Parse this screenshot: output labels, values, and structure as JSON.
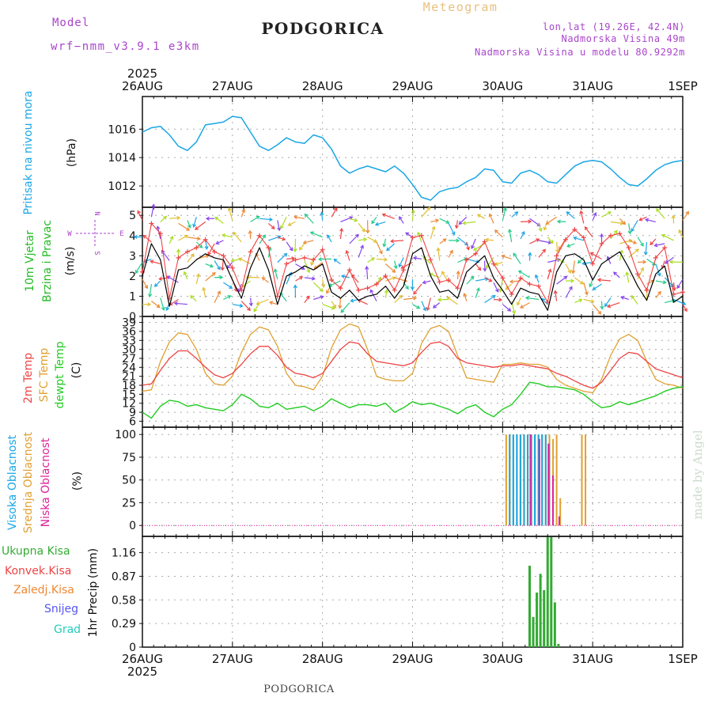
{
  "header": {
    "model_label": "Model",
    "model_name": "wrf−nmm_v3.9.1  e3km",
    "city_title": "PODGORICA",
    "meteogram": "Meteogram",
    "lonlat": "lon,lat (19.26E, 42.4N)",
    "elevation": "Nadmorska Visina 49m",
    "model_elevation": "Nadmorska Visina u modelu 80.9292m",
    "footer_city": "PODGORICA",
    "watermark": "made by Angel"
  },
  "x_axis": {
    "year": "2025",
    "days": [
      "26AUG",
      "27AUG",
      "28AUG",
      "29AUG",
      "30AUG",
      "31AUG",
      "1SEP"
    ]
  },
  "colors": {
    "pressure": "#1aa6e6",
    "wind_speed": "#000000",
    "gust": "#ee4444",
    "t2m": "#ee4444",
    "tsfc": "#e0a030",
    "dewpt": "#22cc22",
    "cloud_high": "#1aa6e6",
    "cloud_mid": "#e0a030",
    "cloud_low": "#dd2299",
    "precip_total": "#33aa33",
    "precip_conv": "#ee4444",
    "precip_frz": "#ee8833",
    "snow": "#5555ee",
    "graupel": "#22ccbb",
    "header_purple": "#aa44cc"
  },
  "chart_data": [
    {
      "id": "pressure",
      "type": "line",
      "ylabel": "Pritisak na nivou mora",
      "unit": "(hPa)",
      "ylim": [
        1010.5,
        1018.3
      ],
      "yticks": [
        1012,
        1014,
        1016
      ],
      "x_days": [
        0,
        0.1,
        0.2,
        0.3,
        0.4,
        0.5,
        0.6,
        0.7,
        0.8,
        0.9,
        1.0,
        1.1,
        1.2,
        1.3,
        1.4,
        1.5,
        1.6,
        1.7,
        1.8,
        1.9,
        2.0,
        2.1,
        2.2,
        2.3,
        2.4,
        2.5,
        2.6,
        2.7,
        2.8,
        2.9,
        3.0,
        3.1,
        3.2,
        3.3,
        3.4,
        3.5,
        3.6,
        3.7,
        3.8,
        3.9,
        4.0,
        4.1,
        4.2,
        4.3,
        4.4,
        4.5,
        4.6,
        4.7,
        4.8,
        4.9,
        5.0,
        5.1,
        5.2,
        5.3,
        5.4,
        5.5,
        5.6,
        5.7,
        5.8,
        5.9,
        6.0
      ],
      "values": [
        1015.8,
        1016.1,
        1016.2,
        1015.6,
        1014.8,
        1014.5,
        1015.1,
        1016.3,
        1016.4,
        1016.5,
        1016.9,
        1016.8,
        1015.8,
        1014.8,
        1014.5,
        1014.9,
        1015.4,
        1015.1,
        1015.0,
        1015.6,
        1015.4,
        1014.6,
        1013.4,
        1012.9,
        1013.2,
        1013.4,
        1013.2,
        1013.0,
        1013.4,
        1012.9,
        1012.1,
        1011.2,
        1011.0,
        1011.6,
        1011.8,
        1011.9,
        1012.3,
        1012.6,
        1013.2,
        1013.1,
        1012.3,
        1012.2,
        1012.9,
        1013.1,
        1012.8,
        1012.3,
        1012.2,
        1012.8,
        1013.4,
        1013.7,
        1013.8,
        1013.7,
        1013.2,
        1012.6,
        1012.1,
        1012.0,
        1012.5,
        1013.1,
        1013.5,
        1013.7,
        1013.8
      ]
    },
    {
      "id": "wind",
      "type": "line",
      "ylabel": "10m Vjetar",
      "ylabel2": "Brzina i Pravac",
      "unit": "(m/s)",
      "compass": {
        "n": "N",
        "s": "S",
        "w": "W",
        "e": "E"
      },
      "ylim": [
        0,
        5.4
      ],
      "yticks": [
        0,
        1,
        2,
        3,
        4,
        5
      ],
      "x_days": [
        0,
        0.1,
        0.2,
        0.3,
        0.4,
        0.5,
        0.6,
        0.7,
        0.8,
        0.9,
        1.0,
        1.1,
        1.2,
        1.3,
        1.4,
        1.5,
        1.6,
        1.7,
        1.8,
        1.9,
        2.0,
        2.1,
        2.2,
        2.3,
        2.4,
        2.5,
        2.6,
        2.7,
        2.8,
        2.9,
        3.0,
        3.1,
        3.2,
        3.3,
        3.4,
        3.5,
        3.6,
        3.7,
        3.8,
        3.9,
        4.0,
        4.1,
        4.2,
        4.3,
        4.4,
        4.5,
        4.6,
        4.7,
        4.8,
        4.9,
        5.0,
        5.1,
        5.2,
        5.3,
        5.4,
        5.5,
        5.6,
        5.7,
        5.8,
        5.9,
        6.0
      ],
      "speed": [
        2.0,
        3.6,
        2.8,
        0.5,
        2.3,
        2.4,
        2.8,
        3.1,
        2.9,
        2.8,
        1.8,
        0.9,
        2.4,
        3.4,
        2.3,
        0.6,
        2.0,
        2.2,
        2.5,
        2.3,
        2.6,
        1.2,
        0.9,
        1.3,
        0.8,
        1.0,
        1.1,
        1.5,
        0.9,
        1.5,
        3.1,
        3.4,
        2.0,
        1.2,
        1.3,
        0.9,
        2.2,
        2.6,
        3.0,
        1.9,
        1.3,
        0.6,
        1.4,
        1.2,
        1.1,
        0.3,
        2.2,
        3.0,
        3.1,
        2.8,
        1.8,
        2.6,
        2.9,
        3.2,
        2.4,
        1.5,
        0.8,
        2.1,
        2.5,
        0.7,
        1.0
      ],
      "gust": [
        2.2,
        4.6,
        4.1,
        0.9,
        2.9,
        3.2,
        3.4,
        3.8,
        3.2,
        3.0,
        2.4,
        1.3,
        3.2,
        4.0,
        3.4,
        1.0,
        2.6,
        2.8,
        2.9,
        2.8,
        3.3,
        1.8,
        1.4,
        2.3,
        1.3,
        1.4,
        1.6,
        2.0,
        1.3,
        2.3,
        3.9,
        4.0,
        2.8,
        1.7,
        1.8,
        1.4,
        2.8,
        3.1,
        3.7,
        2.6,
        1.9,
        1.1,
        1.9,
        1.6,
        1.5,
        0.7,
        3.0,
        3.8,
        4.3,
        3.9,
        2.6,
        3.6,
        4.0,
        4.1,
        3.4,
        2.1,
        1.3,
        2.9,
        3.4,
        1.1,
        1.2
      ]
    },
    {
      "id": "temperature",
      "type": "line",
      "ylabels": [
        "2m Temp",
        "SFC Temp",
        "dewpt Temp"
      ],
      "unit": "(C)",
      "ylim": [
        4,
        41
      ],
      "yticks": [
        6,
        9,
        12,
        15,
        18,
        21,
        24,
        27,
        30,
        33,
        36,
        39
      ],
      "x_days": [
        0,
        0.1,
        0.2,
        0.3,
        0.4,
        0.5,
        0.6,
        0.7,
        0.8,
        0.9,
        1.0,
        1.1,
        1.2,
        1.3,
        1.4,
        1.5,
        1.6,
        1.7,
        1.8,
        1.9,
        2.0,
        2.1,
        2.2,
        2.3,
        2.4,
        2.5,
        2.6,
        2.7,
        2.8,
        2.9,
        3.0,
        3.1,
        3.2,
        3.3,
        3.4,
        3.5,
        3.6,
        3.7,
        3.8,
        3.9,
        4.0,
        4.1,
        4.2,
        4.3,
        4.4,
        4.5,
        4.6,
        4.7,
        4.8,
        4.9,
        5.0,
        5.1,
        5.2,
        5.3,
        5.4,
        5.5,
        5.6,
        5.7,
        5.8,
        5.9,
        6.0
      ],
      "t2m": [
        18,
        18.5,
        23,
        27,
        29.5,
        29.5,
        27,
        24,
        21.5,
        20.5,
        22,
        25,
        28.5,
        31,
        31,
        28,
        24,
        22,
        21.5,
        20.5,
        22,
        26,
        30,
        32.5,
        32,
        28.5,
        26,
        25.5,
        25,
        24.5,
        25.5,
        29,
        32,
        32.5,
        31,
        27,
        25.5,
        25,
        24.5,
        24,
        24.5,
        24.5,
        25,
        24.5,
        24,
        23.5,
        22,
        21,
        19.5,
        18,
        17,
        19,
        23,
        27,
        29,
        28.5,
        26,
        23.5,
        22.5,
        21.5,
        20.5
      ],
      "tsfc": [
        16,
        16.5,
        26,
        32.5,
        35.5,
        35,
        30,
        22,
        18.5,
        18,
        21,
        29,
        35,
        37.5,
        36.5,
        31,
        22,
        18,
        17.5,
        16.5,
        21,
        30.5,
        36.5,
        38.5,
        37.5,
        30,
        21,
        20,
        19.5,
        19.5,
        22,
        32,
        37,
        38,
        36,
        28,
        20.5,
        20,
        19.5,
        19,
        25,
        25,
        25.5,
        25,
        25,
        24,
        20,
        18,
        17,
        16,
        15.5,
        20,
        28,
        33.5,
        35,
        33,
        26,
        20,
        18.5,
        18,
        17
      ],
      "dewpt": [
        9,
        7,
        11,
        13,
        12.5,
        11,
        11.5,
        10.5,
        10,
        9.5,
        11.5,
        15,
        13.5,
        11,
        10.5,
        12,
        10,
        10.5,
        11,
        9.5,
        11,
        13.5,
        12,
        10.5,
        11.5,
        11.5,
        11,
        12,
        9,
        10.5,
        12.5,
        11.5,
        12,
        11,
        10,
        8.5,
        10.5,
        11.5,
        9,
        7.5,
        10,
        11.5,
        15,
        19,
        18.5,
        17.5,
        17.5,
        17,
        16.5,
        15,
        12.5,
        10.5,
        11,
        12.5,
        11.5,
        12.5,
        13.5,
        14.5,
        16,
        17,
        17.5
      ]
    },
    {
      "id": "clouds",
      "type": "bar",
      "ylabels": [
        "Visoka Oblacnost",
        "Srednja Oblacnost",
        "Niska Oblacnost"
      ],
      "unit": "(%)",
      "ylim": [
        -12,
        108
      ],
      "yticks": [
        0,
        25,
        50,
        75,
        100
      ],
      "high": {
        "x_days": [
          4.06,
          4.1,
          4.14,
          4.18,
          4.22,
          4.26,
          4.3,
          4.34,
          4.38,
          4.42,
          4.46,
          4.5
        ],
        "values": [
          100,
          100,
          100,
          100,
          100,
          100,
          100,
          100,
          100,
          100,
          100,
          90
        ]
      },
      "mid": {
        "x_days": [
          4.04,
          4.08,
          4.12,
          4.16,
          4.2,
          4.24,
          4.28,
          4.32,
          4.36,
          4.4,
          4.44,
          4.48,
          4.52,
          4.56,
          4.6,
          4.64,
          4.88,
          4.92
        ],
        "values": [
          100,
          100,
          100,
          100,
          100,
          100,
          100,
          100,
          100,
          100,
          100,
          100,
          100,
          95,
          100,
          30,
          100,
          100
        ]
      },
      "low": {
        "x_days": [
          4.3,
          4.4,
          4.5,
          4.55,
          4.62
        ],
        "values": [
          100,
          95,
          90,
          55,
          10
        ]
      }
    },
    {
      "id": "precip",
      "type": "bar",
      "legend": [
        "Ukupna  Kisa",
        "Konvek.Kisa",
        "Zaledj.Kisa",
        "Snijeg",
        "Grad"
      ],
      "ylabel": "1hr Precip",
      "unit": "(mm)",
      "ylim": [
        0,
        1.36
      ],
      "yticks": [
        0,
        0.29,
        0.58,
        0.87,
        1.16
      ],
      "total": {
        "x_days": [
          4.3,
          4.34,
          4.38,
          4.42,
          4.46,
          4.5,
          4.54,
          4.58,
          4.62
        ],
        "values": [
          1.0,
          0.37,
          0.67,
          0.9,
          0.7,
          1.35,
          1.35,
          0.55,
          0.04
        ]
      }
    }
  ]
}
